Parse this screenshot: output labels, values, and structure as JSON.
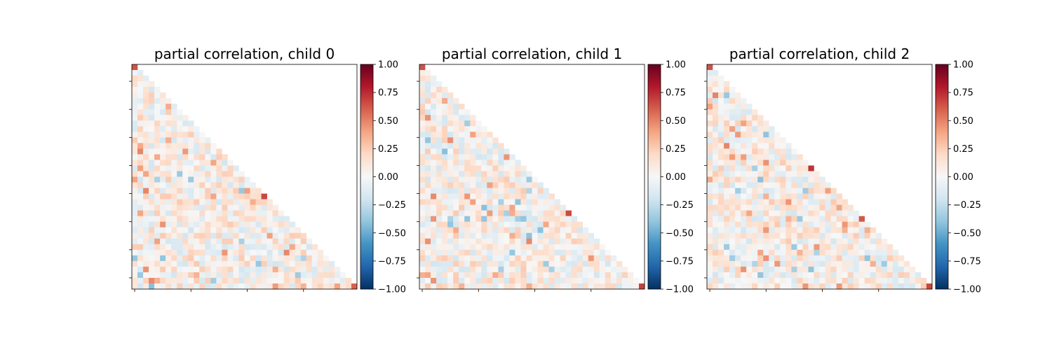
{
  "chart_data": [
    {
      "type": "heatmap",
      "title": "partial correlation, child 0",
      "n": 40,
      "seed": 11,
      "strong_diag_rows": [
        0,
        23,
        39
      ],
      "colorbar": {
        "vmin": -1.0,
        "vmax": 1.0,
        "ticks": [
          "1.00",
          "0.75",
          "0.50",
          "0.25",
          "0.00",
          "−0.25",
          "−0.50",
          "−0.75",
          "−1.00"
        ]
      },
      "colormap": [
        "#053061",
        "#2166ac",
        "#4393c3",
        "#92c5de",
        "#d1e5f0",
        "#f7f7f7",
        "#fddbc7",
        "#f4a582",
        "#d6604d",
        "#b2182b",
        "#67001f"
      ]
    },
    {
      "type": "heatmap",
      "title": "partial correlation, child 1",
      "n": 40,
      "seed": 23,
      "strong_diag_rows": [
        0,
        26,
        39
      ],
      "colorbar": {
        "vmin": -1.0,
        "vmax": 1.0,
        "ticks": [
          "1.00",
          "0.75",
          "0.50",
          "0.25",
          "0.00",
          "−0.25",
          "−0.50",
          "−0.75",
          "−1.00"
        ]
      },
      "colormap": [
        "#053061",
        "#2166ac",
        "#4393c3",
        "#92c5de",
        "#d1e5f0",
        "#f7f7f7",
        "#fddbc7",
        "#f4a582",
        "#d6604d",
        "#b2182b",
        "#67001f"
      ]
    },
    {
      "type": "heatmap",
      "title": "partial correlation, child 2",
      "n": 40,
      "seed": 37,
      "strong_diag_rows": [
        0,
        18,
        27,
        39
      ],
      "colorbar": {
        "vmin": -1.0,
        "vmax": 1.0,
        "ticks": [
          "1.00",
          "0.75",
          "0.50",
          "0.25",
          "0.00",
          "−0.25",
          "−0.50",
          "−0.75",
          "−1.00"
        ]
      },
      "colormap": [
        "#053061",
        "#2166ac",
        "#4393c3",
        "#92c5de",
        "#d1e5f0",
        "#f7f7f7",
        "#fddbc7",
        "#f4a582",
        "#d6604d",
        "#b2182b",
        "#67001f"
      ]
    }
  ]
}
